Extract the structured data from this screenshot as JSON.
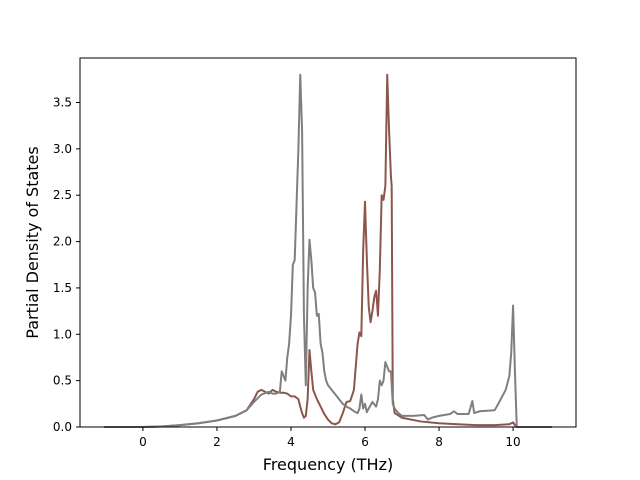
{
  "chart_data": {
    "type": "line",
    "xlabel": "Frequency (THz)",
    "ylabel": "Partial Density of States",
    "xlim": [
      -1.7,
      11.7
    ],
    "ylim": [
      0.0,
      3.98
    ],
    "xticks": [
      0,
      2,
      4,
      6,
      8,
      10
    ],
    "yticks": [
      0.0,
      0.5,
      1.0,
      1.5,
      2.0,
      2.5,
      3.0,
      3.5
    ],
    "xtick_labels": [
      "0",
      "2",
      "4",
      "6",
      "8",
      "10"
    ],
    "ytick_labels": [
      "0.0",
      "0.5",
      "1.0",
      "1.5",
      "2.0",
      "2.5",
      "3.0",
      "3.5"
    ],
    "grid": false,
    "legend": "none",
    "series": [
      {
        "color": "#8c564b",
        "points": [
          [
            -1.05,
            0.0
          ],
          [
            0.0,
            0.0
          ],
          [
            0.5,
            0.005
          ],
          [
            1.0,
            0.02
          ],
          [
            1.5,
            0.04
          ],
          [
            2.0,
            0.07
          ],
          [
            2.5,
            0.12
          ],
          [
            2.8,
            0.18
          ],
          [
            3.0,
            0.3
          ],
          [
            3.1,
            0.38
          ],
          [
            3.2,
            0.4
          ],
          [
            3.3,
            0.38
          ],
          [
            3.4,
            0.36
          ],
          [
            3.5,
            0.4
          ],
          [
            3.6,
            0.38
          ],
          [
            3.7,
            0.37
          ],
          [
            3.8,
            0.37
          ],
          [
            3.9,
            0.36
          ],
          [
            4.0,
            0.33
          ],
          [
            4.1,
            0.33
          ],
          [
            4.2,
            0.3
          ],
          [
            4.25,
            0.22
          ],
          [
            4.3,
            0.15
          ],
          [
            4.35,
            0.1
          ],
          [
            4.4,
            0.12
          ],
          [
            4.45,
            0.3
          ],
          [
            4.5,
            0.83
          ],
          [
            4.55,
            0.6
          ],
          [
            4.6,
            0.4
          ],
          [
            4.7,
            0.3
          ],
          [
            4.8,
            0.22
          ],
          [
            4.9,
            0.14
          ],
          [
            5.0,
            0.08
          ],
          [
            5.1,
            0.04
          ],
          [
            5.2,
            0.03
          ],
          [
            5.3,
            0.05
          ],
          [
            5.4,
            0.15
          ],
          [
            5.5,
            0.27
          ],
          [
            5.6,
            0.28
          ],
          [
            5.7,
            0.4
          ],
          [
            5.75,
            0.65
          ],
          [
            5.8,
            0.9
          ],
          [
            5.85,
            1.02
          ],
          [
            5.9,
            0.98
          ],
          [
            5.95,
            1.9
          ],
          [
            6.0,
            2.43
          ],
          [
            6.05,
            1.8
          ],
          [
            6.1,
            1.3
          ],
          [
            6.15,
            1.13
          ],
          [
            6.2,
            1.25
          ],
          [
            6.25,
            1.4
          ],
          [
            6.3,
            1.47
          ],
          [
            6.35,
            1.2
          ],
          [
            6.4,
            1.7
          ],
          [
            6.45,
            2.5
          ],
          [
            6.5,
            2.45
          ],
          [
            6.55,
            2.6
          ],
          [
            6.6,
            3.8
          ],
          [
            6.65,
            3.2
          ],
          [
            6.7,
            2.7
          ],
          [
            6.72,
            2.6
          ],
          [
            6.75,
            0.3
          ],
          [
            6.8,
            0.15
          ],
          [
            7.0,
            0.1
          ],
          [
            7.5,
            0.06
          ],
          [
            8.0,
            0.04
          ],
          [
            8.5,
            0.03
          ],
          [
            9.0,
            0.02
          ],
          [
            9.5,
            0.02
          ],
          [
            9.9,
            0.03
          ],
          [
            10.0,
            0.05
          ],
          [
            10.05,
            0.02
          ],
          [
            10.1,
            0.0
          ],
          [
            11.05,
            0.0
          ]
        ]
      },
      {
        "color": "#7f7f7f",
        "points": [
          [
            -1.05,
            0.0
          ],
          [
            0.0,
            0.0
          ],
          [
            0.5,
            0.005
          ],
          [
            1.0,
            0.02
          ],
          [
            1.5,
            0.04
          ],
          [
            2.0,
            0.07
          ],
          [
            2.5,
            0.12
          ],
          [
            2.8,
            0.18
          ],
          [
            3.0,
            0.27
          ],
          [
            3.2,
            0.35
          ],
          [
            3.4,
            0.38
          ],
          [
            3.5,
            0.36
          ],
          [
            3.6,
            0.36
          ],
          [
            3.7,
            0.38
          ],
          [
            3.75,
            0.6
          ],
          [
            3.8,
            0.55
          ],
          [
            3.85,
            0.5
          ],
          [
            3.9,
            0.75
          ],
          [
            3.95,
            0.9
          ],
          [
            4.0,
            1.2
          ],
          [
            4.05,
            1.75
          ],
          [
            4.1,
            1.8
          ],
          [
            4.15,
            2.4
          ],
          [
            4.2,
            3.0
          ],
          [
            4.25,
            3.8
          ],
          [
            4.3,
            3.2
          ],
          [
            4.35,
            1.2
          ],
          [
            4.4,
            0.45
          ],
          [
            4.45,
            1.5
          ],
          [
            4.5,
            2.02
          ],
          [
            4.55,
            1.8
          ],
          [
            4.6,
            1.5
          ],
          [
            4.65,
            1.45
          ],
          [
            4.7,
            1.2
          ],
          [
            4.75,
            1.22
          ],
          [
            4.8,
            0.9
          ],
          [
            4.85,
            0.8
          ],
          [
            4.9,
            0.6
          ],
          [
            4.95,
            0.5
          ],
          [
            5.0,
            0.45
          ],
          [
            5.1,
            0.4
          ],
          [
            5.2,
            0.35
          ],
          [
            5.3,
            0.3
          ],
          [
            5.4,
            0.25
          ],
          [
            5.5,
            0.22
          ],
          [
            5.6,
            0.2
          ],
          [
            5.7,
            0.17
          ],
          [
            5.8,
            0.15
          ],
          [
            5.85,
            0.2
          ],
          [
            5.9,
            0.35
          ],
          [
            5.95,
            0.2
          ],
          [
            6.0,
            0.25
          ],
          [
            6.05,
            0.16
          ],
          [
            6.1,
            0.2
          ],
          [
            6.2,
            0.27
          ],
          [
            6.3,
            0.22
          ],
          [
            6.35,
            0.3
          ],
          [
            6.4,
            0.5
          ],
          [
            6.45,
            0.45
          ],
          [
            6.5,
            0.5
          ],
          [
            6.55,
            0.7
          ],
          [
            6.6,
            0.65
          ],
          [
            6.65,
            0.6
          ],
          [
            6.7,
            0.6
          ],
          [
            6.75,
            0.25
          ],
          [
            6.8,
            0.2
          ],
          [
            6.9,
            0.15
          ],
          [
            7.0,
            0.12
          ],
          [
            7.3,
            0.12
          ],
          [
            7.6,
            0.13
          ],
          [
            7.7,
            0.08
          ],
          [
            7.8,
            0.1
          ],
          [
            8.0,
            0.12
          ],
          [
            8.3,
            0.14
          ],
          [
            8.4,
            0.17
          ],
          [
            8.5,
            0.14
          ],
          [
            8.8,
            0.14
          ],
          [
            8.9,
            0.28
          ],
          [
            8.95,
            0.15
          ],
          [
            9.1,
            0.17
          ],
          [
            9.5,
            0.18
          ],
          [
            9.6,
            0.25
          ],
          [
            9.8,
            0.4
          ],
          [
            9.9,
            0.55
          ],
          [
            9.95,
            0.8
          ],
          [
            10.0,
            1.31
          ],
          [
            10.05,
            0.6
          ],
          [
            10.1,
            0.0
          ],
          [
            11.05,
            0.0
          ]
        ]
      }
    ]
  }
}
